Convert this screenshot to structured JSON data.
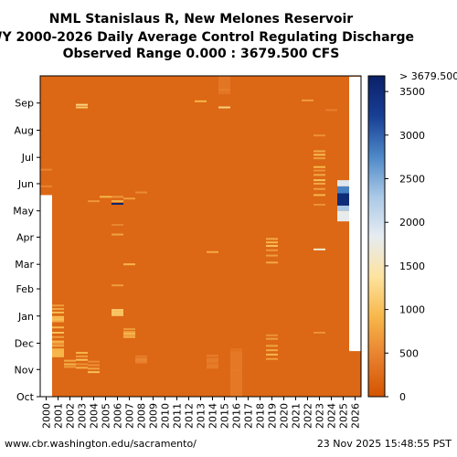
{
  "chart_data": {
    "type": "heatmap",
    "title": [
      "NML Stanislaus R, New Melones Reservoir",
      "WY 2000-2026 Daily Average Control Regulating Discharge",
      "Observed Range 0.000 : 3679.500 CFS"
    ],
    "x_years": [
      "2000",
      "2001",
      "2002",
      "2003",
      "2004",
      "2005",
      "2006",
      "2007",
      "2008",
      "2009",
      "2010",
      "2011",
      "2012",
      "2013",
      "2014",
      "2015",
      "2016",
      "2017",
      "2018",
      "2019",
      "2020",
      "2021",
      "2022",
      "2023",
      "2024",
      "2025",
      "2026"
    ],
    "y_months": [
      "Oct",
      "Nov",
      "Dec",
      "Jan",
      "Feb",
      "Mar",
      "Apr",
      "May",
      "Jun",
      "Jul",
      "Aug",
      "Sep"
    ],
    "colorbar": {
      "min": 0,
      "max": 3679.5,
      "ticks": [
        0,
        500,
        1000,
        1500,
        2000,
        2500,
        3000,
        3500
      ],
      "over_label": "> 3679.500",
      "colors": [
        "#d35400",
        "#e8802e",
        "#f7b84b",
        "#fde3a0",
        "#e6ecf2",
        "#a9c8e6",
        "#4d87c7",
        "#183f94",
        "#0a2068"
      ]
    },
    "units": "CFS",
    "base_value": 200,
    "no_data": [
      {
        "year": "2000",
        "from_day": 0,
        "to_day": 230
      },
      {
        "year": "2026",
        "from_day": 52,
        "to_day": 365
      }
    ],
    "events": [
      {
        "year": "2000",
        "day": 240,
        "value": 500
      },
      {
        "year": "2000",
        "day": 259,
        "value": 500
      },
      {
        "year": "2001",
        "day": 60,
        "value": 550
      },
      {
        "year": "2001",
        "day": 63,
        "value": 900
      },
      {
        "year": "2001",
        "day": 68,
        "value": 700
      },
      {
        "year": "2001",
        "day": 73,
        "value": 1000
      },
      {
        "year": "2001",
        "day": 79,
        "value": 900
      },
      {
        "year": "2001",
        "day": 86,
        "value": 800
      },
      {
        "year": "2001",
        "day": 90,
        "value": 900
      },
      {
        "year": "2001",
        "day": 96,
        "value": 950
      },
      {
        "year": "2001",
        "day": 100,
        "value": 800
      },
      {
        "year": "2001",
        "day": 104,
        "value": 700
      },
      {
        "year": "2002",
        "day": 34,
        "value": 700
      },
      {
        "year": "2002",
        "day": 37,
        "value": 900
      },
      {
        "year": "2002",
        "day": 41,
        "value": 800
      },
      {
        "year": "2003",
        "day": 33,
        "value": 850
      },
      {
        "year": "2003",
        "day": 37,
        "value": 600
      },
      {
        "year": "2003",
        "day": 42,
        "value": 1000
      },
      {
        "year": "2003",
        "day": 46,
        "value": 700
      },
      {
        "year": "2003",
        "day": 50,
        "value": 900
      },
      {
        "year": "2003",
        "day": 330,
        "value": 1100
      },
      {
        "year": "2003",
        "day": 333,
        "value": 1200
      },
      {
        "year": "2004",
        "day": 28,
        "value": 1000
      },
      {
        "year": "2004",
        "day": 32,
        "value": 750
      },
      {
        "year": "2004",
        "day": 36,
        "value": 600
      },
      {
        "year": "2004",
        "day": 40,
        "value": 550
      },
      {
        "year": "2004",
        "day": 223,
        "value": 650
      },
      {
        "year": "2005",
        "day": 228,
        "value": 900
      },
      {
        "year": "2006",
        "day": 93,
        "value": 1050
      },
      {
        "year": "2006",
        "day": 97,
        "value": 1000
      },
      {
        "year": "2006",
        "day": 127,
        "value": 700
      },
      {
        "year": "2006",
        "day": 185,
        "value": 750
      },
      {
        "year": "2006",
        "day": 196,
        "value": 500
      },
      {
        "year": "2006",
        "day": 220,
        "value": 3600
      },
      {
        "year": "2006",
        "day": 223,
        "value": 900
      },
      {
        "year": "2006",
        "day": 228,
        "value": 650
      },
      {
        "year": "2007",
        "day": 68,
        "value": 800
      },
      {
        "year": "2007",
        "day": 72,
        "value": 900
      },
      {
        "year": "2007",
        "day": 77,
        "value": 700
      },
      {
        "year": "2007",
        "day": 151,
        "value": 900
      },
      {
        "year": "2007",
        "day": 226,
        "value": 700
      },
      {
        "year": "2008",
        "day": 39,
        "value": 450
      },
      {
        "year": "2008",
        "day": 45,
        "value": 350
      },
      {
        "year": "2008",
        "day": 233,
        "value": 550
      },
      {
        "year": "2014",
        "day": 165,
        "value": 800
      },
      {
        "year": "2013",
        "day": 337,
        "value": 900
      },
      {
        "year": "2014",
        "day": 38,
        "value": 330
      },
      {
        "year": "2014",
        "day": 45,
        "value": 300
      },
      {
        "year": "2015",
        "day": 330,
        "value": 1200
      },
      {
        "year": "2015",
        "day": 350,
        "value": 430
      },
      {
        "year": "2015",
        "day": 358,
        "value": 350
      },
      {
        "year": "2016",
        "day": 30,
        "value": 420
      },
      {
        "year": "2016",
        "day": 53,
        "value": 300
      },
      {
        "year": "2019",
        "day": 43,
        "value": 700
      },
      {
        "year": "2019",
        "day": 48,
        "value": 900
      },
      {
        "year": "2019",
        "day": 53,
        "value": 800
      },
      {
        "year": "2019",
        "day": 58,
        "value": 750
      },
      {
        "year": "2019",
        "day": 66,
        "value": 700
      },
      {
        "year": "2019",
        "day": 70,
        "value": 600
      },
      {
        "year": "2019",
        "day": 153,
        "value": 800
      },
      {
        "year": "2019",
        "day": 161,
        "value": 700
      },
      {
        "year": "2019",
        "day": 167,
        "value": 650
      },
      {
        "year": "2019",
        "day": 172,
        "value": 1000
      },
      {
        "year": "2019",
        "day": 176,
        "value": 900
      },
      {
        "year": "2019",
        "day": 180,
        "value": 800
      },
      {
        "year": "2022",
        "day": 338,
        "value": 700
      },
      {
        "year": "2023",
        "day": 73,
        "value": 600
      },
      {
        "year": "2023",
        "day": 168,
        "value": 1600
      },
      {
        "year": "2023",
        "day": 219,
        "value": 600
      },
      {
        "year": "2023",
        "day": 230,
        "value": 900
      },
      {
        "year": "2023",
        "day": 237,
        "value": 700
      },
      {
        "year": "2023",
        "day": 243,
        "value": 800
      },
      {
        "year": "2023",
        "day": 247,
        "value": 1000
      },
      {
        "year": "2023",
        "day": 253,
        "value": 800
      },
      {
        "year": "2023",
        "day": 258,
        "value": 600
      },
      {
        "year": "2023",
        "day": 262,
        "value": 900
      },
      {
        "year": "2023",
        "day": 272,
        "value": 700
      },
      {
        "year": "2023",
        "day": 276,
        "value": 950
      },
      {
        "year": "2023",
        "day": 280,
        "value": 800
      },
      {
        "year": "2023",
        "day": 298,
        "value": 600
      },
      {
        "year": "2024",
        "day": 327,
        "value": 450
      }
    ],
    "blocks": [
      {
        "year": "2001",
        "from_day": 45,
        "to_day": 55,
        "value": 900
      },
      {
        "year": "2001",
        "from_day": 57,
        "to_day": 62,
        "value": 800
      },
      {
        "year": "2001",
        "from_day": 86,
        "to_day": 92,
        "value": 1000
      },
      {
        "year": "2006",
        "from_day": 94,
        "to_day": 100,
        "value": 1100
      },
      {
        "year": "2007",
        "from_day": 67,
        "to_day": 75,
        "value": 700
      },
      {
        "year": "2008",
        "from_day": 38,
        "to_day": 47,
        "value": 500
      },
      {
        "year": "2014",
        "from_day": 32,
        "to_day": 48,
        "value": 420
      },
      {
        "year": "2015",
        "from_day": 345,
        "to_day": 366,
        "value": 360
      },
      {
        "year": "2016",
        "from_day": 0,
        "to_day": 55,
        "value": 380
      },
      {
        "year": "2025",
        "from_day": 200,
        "to_day": 212,
        "value": 1800
      },
      {
        "year": "2025",
        "from_day": 212,
        "to_day": 218,
        "value": 2300
      },
      {
        "year": "2025",
        "from_day": 218,
        "to_day": 232,
        "value": 3500
      },
      {
        "year": "2025",
        "from_day": 232,
        "to_day": 240,
        "value": 2800
      },
      {
        "year": "2025",
        "from_day": 240,
        "to_day": 247,
        "value": 1900
      }
    ]
  },
  "footer": {
    "left": "www.cbr.washington.edu/sacramento/",
    "right": "23 Nov 2025 15:48:55 PST"
  }
}
